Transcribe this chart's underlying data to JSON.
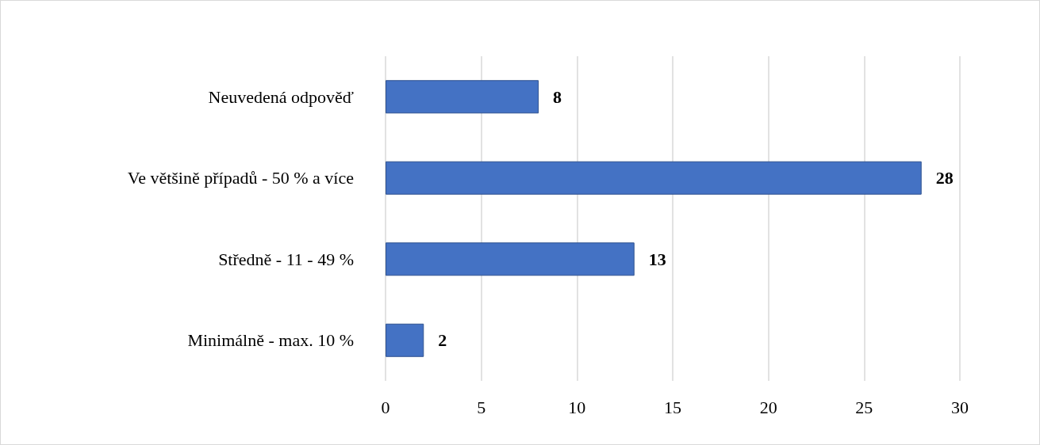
{
  "chart_data": {
    "type": "bar",
    "orientation": "horizontal",
    "categories": [
      "Neuvedená odpověď",
      "Ve většině případů - 50 % a více",
      "Středně - 11 - 49 %",
      "Minimálně - max. 10 %"
    ],
    "values": [
      8,
      28,
      13,
      2
    ],
    "color": "#4472c4",
    "xlim": [
      0,
      30
    ],
    "xticks": [
      0,
      5,
      10,
      15,
      20,
      25,
      30
    ],
    "grid": "x",
    "data_labels": true
  }
}
